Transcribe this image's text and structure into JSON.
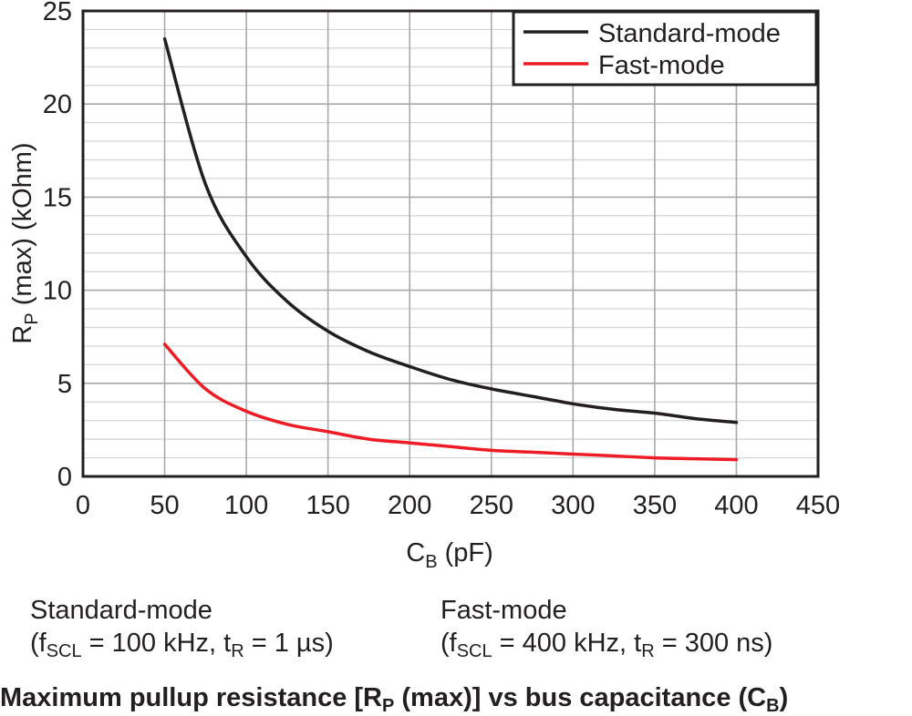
{
  "chart_data": {
    "type": "line",
    "title": "Maximum pullup resistance [RP (max)] vs bus capacitance (CB)",
    "title_parts": {
      "t1": "Maximum pullup resistance [R",
      "t1_sub": "P",
      "t2": " (max)] vs bus capacitance (C",
      "t2_sub": "B",
      "t3": ")"
    },
    "xlabel": "CB (pF)",
    "xlabel_parts": {
      "main": "C",
      "sub": "B",
      "rest": " (pF)"
    },
    "ylabel": "RP (max) (kOhm)",
    "ylabel_parts": {
      "main": "R",
      "sub": "P",
      "rest": " (max) (kOhm)"
    },
    "xlim": [
      0,
      450
    ],
    "ylim": [
      0,
      25
    ],
    "xticks": [
      0,
      50,
      100,
      150,
      200,
      250,
      300,
      350,
      400,
      450
    ],
    "yticks": [
      0,
      5,
      10,
      15,
      20,
      25
    ],
    "x_minor_step": 50,
    "y_minor_step": 1,
    "grid": true,
    "legend_position": "top-right",
    "series": [
      {
        "name": "Standard-mode",
        "color": "#231f20",
        "x": [
          50,
          75,
          100,
          125,
          150,
          175,
          200,
          225,
          250,
          275,
          300,
          325,
          350,
          375,
          400
        ],
        "y": [
          23.5,
          15.7,
          11.8,
          9.4,
          7.8,
          6.7,
          5.9,
          5.2,
          4.7,
          4.3,
          3.9,
          3.6,
          3.4,
          3.1,
          2.9
        ]
      },
      {
        "name": "Fast-mode",
        "color": "#ee1c25",
        "x": [
          50,
          75,
          100,
          125,
          150,
          175,
          200,
          225,
          250,
          275,
          300,
          325,
          350,
          375,
          400
        ],
        "y": [
          7.1,
          4.7,
          3.5,
          2.8,
          2.4,
          2.0,
          1.8,
          1.6,
          1.4,
          1.3,
          1.2,
          1.1,
          1.0,
          0.95,
          0.9
        ]
      }
    ]
  },
  "captions": {
    "standard": {
      "line1": "Standard-mode",
      "pre": "(f",
      "fsub": "SCL",
      "mid": " = 100 kHz, t",
      "tsub": "R",
      "post": " = 1 µs)"
    },
    "fast": {
      "line1": "Fast-mode",
      "pre": "(f",
      "fsub": "SCL",
      "mid": " = 400 kHz, t",
      "tsub": "R",
      "post": " = 300 ns)"
    }
  }
}
